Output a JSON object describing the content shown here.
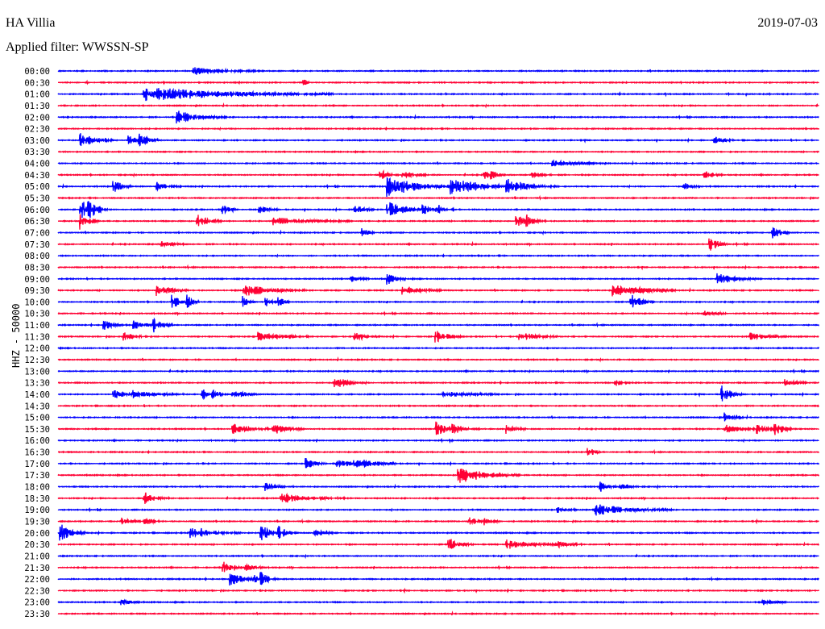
{
  "header": {
    "station": "HA Villia",
    "date": "2019-07-03",
    "filter_label": "Applied filter:",
    "filter_value": "WWSSN-SP"
  },
  "chart_data": {
    "type": "line",
    "title": "HA Villia",
    "ylabel": "HHZ - 50000",
    "row_minutes": 30,
    "colors": {
      "even": "#0000ff",
      "odd": "#ff0033"
    },
    "rows": [
      {
        "label": "00:00",
        "events": [
          [
            5.3,
            5,
            1.0
          ]
        ]
      },
      {
        "label": "00:30",
        "events": [
          [
            9.7,
            6,
            0.1
          ]
        ]
      },
      {
        "label": "01:00",
        "events": [
          [
            3.4,
            9,
            3.0
          ]
        ]
      },
      {
        "label": "01:30",
        "events": []
      },
      {
        "label": "02:00",
        "events": [
          [
            4.7,
            8,
            0.8
          ]
        ]
      },
      {
        "label": "02:30",
        "events": []
      },
      {
        "label": "03:00",
        "events": [
          [
            0.9,
            9,
            0.5
          ],
          [
            2.8,
            6,
            0.3
          ],
          [
            3.2,
            8,
            0.3
          ],
          [
            25.9,
            5,
            0.3
          ]
        ]
      },
      {
        "label": "03:30",
        "events": []
      },
      {
        "label": "04:00",
        "events": [
          [
            19.5,
            4,
            0.8
          ]
        ]
      },
      {
        "label": "04:30",
        "events": [
          [
            12.7,
            7,
            0.3
          ],
          [
            13.6,
            4,
            0.5
          ],
          [
            16.8,
            7,
            0.2
          ],
          [
            17.1,
            6,
            0.2
          ],
          [
            18.7,
            4,
            0.3
          ],
          [
            25.5,
            6,
            0.3
          ]
        ]
      },
      {
        "label": "05:00",
        "events": [
          [
            2.2,
            8,
            0.3
          ],
          [
            3.9,
            5,
            0.4
          ],
          [
            13.0,
            14,
            1.0
          ],
          [
            15.5,
            10,
            1.2
          ],
          [
            17.7,
            8,
            0.8
          ],
          [
            24.7,
            4,
            0.3
          ]
        ]
      },
      {
        "label": "05:30",
        "events": []
      },
      {
        "label": "06:00",
        "events": [
          [
            0.9,
            12,
            0.4
          ],
          [
            1.2,
            7,
            0.3
          ],
          [
            6.5,
            7,
            0.2
          ],
          [
            7.9,
            6,
            0.3
          ],
          [
            11.7,
            7,
            0.3
          ],
          [
            13.0,
            10,
            0.6
          ],
          [
            14.4,
            6,
            0.3
          ],
          [
            14.9,
            5,
            0.3
          ]
        ]
      },
      {
        "label": "06:30",
        "events": [
          [
            0.9,
            10,
            0.3
          ],
          [
            5.5,
            8,
            0.4
          ],
          [
            8.5,
            5,
            1.2
          ],
          [
            18.1,
            8,
            0.3
          ],
          [
            18.5,
            7,
            0.3
          ]
        ]
      },
      {
        "label": "07:00",
        "events": [
          [
            12.0,
            6,
            0.2
          ],
          [
            28.2,
            8,
            0.3
          ]
        ]
      },
      {
        "label": "07:30",
        "events": [
          [
            4.1,
            4,
            0.4
          ],
          [
            25.7,
            10,
            0.3
          ]
        ]
      },
      {
        "label": "08:00",
        "events": []
      },
      {
        "label": "08:30",
        "events": []
      },
      {
        "label": "09:00",
        "events": [
          [
            11.5,
            5,
            0.3
          ],
          [
            13.0,
            7,
            0.3
          ],
          [
            26.0,
            7,
            0.6
          ]
        ]
      },
      {
        "label": "09:30",
        "events": [
          [
            3.9,
            8,
            0.5
          ],
          [
            7.3,
            8,
            1.0
          ],
          [
            13.6,
            6,
            0.6
          ],
          [
            21.9,
            8,
            1.0
          ]
        ]
      },
      {
        "label": "10:00",
        "events": [
          [
            4.5,
            12,
            0.2
          ],
          [
            5.1,
            9,
            0.2
          ],
          [
            7.3,
            7,
            0.2
          ],
          [
            8.2,
            6,
            0.2
          ],
          [
            8.7,
            7,
            0.2
          ],
          [
            22.5,
            12,
            0.4
          ]
        ]
      },
      {
        "label": "10:30",
        "events": [
          [
            25.5,
            5,
            0.4
          ]
        ]
      },
      {
        "label": "11:00",
        "events": [
          [
            1.8,
            7,
            0.3
          ],
          [
            3.0,
            5,
            0.4
          ],
          [
            3.8,
            9,
            0.3
          ]
        ]
      },
      {
        "label": "11:30",
        "events": [
          [
            2.6,
            6,
            0.3
          ],
          [
            7.9,
            6,
            0.8
          ],
          [
            11.7,
            5,
            0.4
          ],
          [
            14.9,
            8,
            0.4
          ],
          [
            18.2,
            6,
            0.6
          ],
          [
            27.3,
            5,
            0.6
          ]
        ]
      },
      {
        "label": "12:00",
        "events": []
      },
      {
        "label": "12:30",
        "events": []
      },
      {
        "label": "13:00",
        "events": []
      },
      {
        "label": "13:30",
        "events": [
          [
            10.9,
            8,
            0.5
          ],
          [
            22.0,
            4,
            0.3
          ],
          [
            28.7,
            4,
            0.4
          ]
        ]
      },
      {
        "label": "14:00",
        "events": [
          [
            2.2,
            6,
            0.4
          ],
          [
            3.0,
            4,
            0.8
          ],
          [
            5.7,
            7,
            0.2
          ],
          [
            6.1,
            6,
            0.2
          ],
          [
            6.9,
            6,
            0.4
          ],
          [
            15.2,
            4,
            0.9
          ],
          [
            26.2,
            12,
            0.3
          ]
        ]
      },
      {
        "label": "14:30",
        "events": []
      },
      {
        "label": "15:00",
        "events": [
          [
            26.3,
            6,
            0.3
          ]
        ]
      },
      {
        "label": "15:30",
        "events": [
          [
            6.9,
            6,
            0.6
          ],
          [
            8.5,
            7,
            0.5
          ],
          [
            14.9,
            10,
            0.4
          ],
          [
            15.4,
            6,
            0.5
          ],
          [
            17.7,
            7,
            0.3
          ],
          [
            26.3,
            6,
            0.5
          ],
          [
            27.6,
            6,
            0.6
          ],
          [
            28.2,
            8,
            0.3
          ]
        ]
      },
      {
        "label": "16:00",
        "events": []
      },
      {
        "label": "16:30",
        "events": [
          [
            20.9,
            7,
            0.2
          ]
        ]
      },
      {
        "label": "17:00",
        "events": [
          [
            9.8,
            8,
            0.3
          ],
          [
            11.0,
            5,
            0.4
          ],
          [
            11.7,
            8,
            0.7
          ]
        ]
      },
      {
        "label": "17:30",
        "events": [
          [
            15.8,
            10,
            1.0
          ]
        ]
      },
      {
        "label": "18:00",
        "events": [
          [
            8.2,
            8,
            0.3
          ],
          [
            21.4,
            6,
            0.3
          ],
          [
            22.2,
            5,
            0.3
          ]
        ]
      },
      {
        "label": "18:30",
        "events": [
          [
            3.4,
            8,
            0.4
          ],
          [
            8.8,
            6,
            1.0
          ]
        ]
      },
      {
        "label": "19:00",
        "events": [
          [
            19.7,
            5,
            0.3
          ],
          [
            21.2,
            7,
            1.2
          ]
        ]
      },
      {
        "label": "19:30",
        "events": [
          [
            2.5,
            6,
            0.3
          ],
          [
            3.4,
            6,
            0.3
          ],
          [
            16.2,
            6,
            0.3
          ],
          [
            16.8,
            5,
            0.3
          ]
        ]
      },
      {
        "label": "20:00",
        "events": [
          [
            0.1,
            12,
            0.4
          ],
          [
            5.2,
            7,
            0.8
          ],
          [
            8.0,
            10,
            0.4
          ],
          [
            8.7,
            7,
            0.3
          ],
          [
            10.1,
            6,
            0.3
          ]
        ]
      },
      {
        "label": "20:30",
        "events": [
          [
            15.4,
            8,
            0.4
          ],
          [
            17.7,
            6,
            0.8
          ],
          [
            19.7,
            4,
            0.4
          ]
        ]
      },
      {
        "label": "21:00",
        "events": []
      },
      {
        "label": "21:30",
        "events": [
          [
            6.5,
            8,
            0.3
          ],
          [
            7.4,
            6,
            0.3
          ]
        ]
      },
      {
        "label": "22:00",
        "events": [
          [
            6.8,
            9,
            0.4
          ],
          [
            7.7,
            7,
            0.3
          ],
          [
            8.0,
            6,
            0.3
          ]
        ]
      },
      {
        "label": "22:30",
        "events": []
      },
      {
        "label": "23:00",
        "events": [
          [
            2.5,
            5,
            0.3
          ],
          [
            27.8,
            4,
            0.4
          ]
        ]
      },
      {
        "label": "23:30",
        "events": []
      }
    ]
  }
}
